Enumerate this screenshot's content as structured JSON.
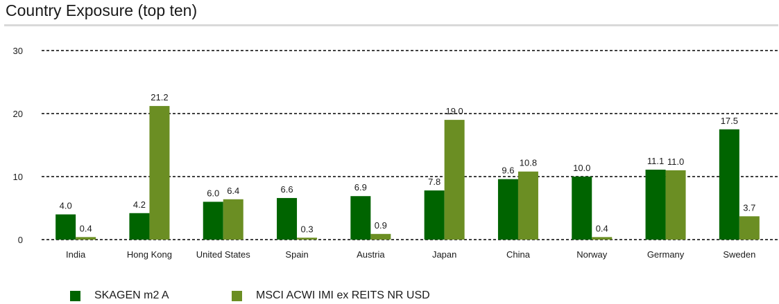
{
  "title": "Country Exposure (top ten)",
  "colors": {
    "series1": "#006400",
    "series2": "#6b8e23",
    "grid": "#000000"
  },
  "chart_data": {
    "type": "bar",
    "title": "Country Exposure (top ten)",
    "categories": [
      "India",
      "Hong Kong",
      "United States",
      "Spain",
      "Austria",
      "Japan",
      "China",
      "Norway",
      "Germany",
      "Sweden"
    ],
    "series": [
      {
        "name": "SKAGEN m2 A",
        "values": [
          4.0,
          4.2,
          6.0,
          6.6,
          6.9,
          7.8,
          9.6,
          10.0,
          11.1,
          17.5
        ]
      },
      {
        "name": "MSCI ACWI IMI ex REITS NR USD",
        "values": [
          0.4,
          21.2,
          6.4,
          0.3,
          0.9,
          19.0,
          10.8,
          0.4,
          11.0,
          3.7
        ]
      }
    ],
    "yticks": [
      "0",
      "10",
      "20",
      "30"
    ],
    "ylim": [
      0,
      30
    ],
    "grid": true,
    "legend": "bottom-left",
    "xlabel": "",
    "ylabel": ""
  }
}
